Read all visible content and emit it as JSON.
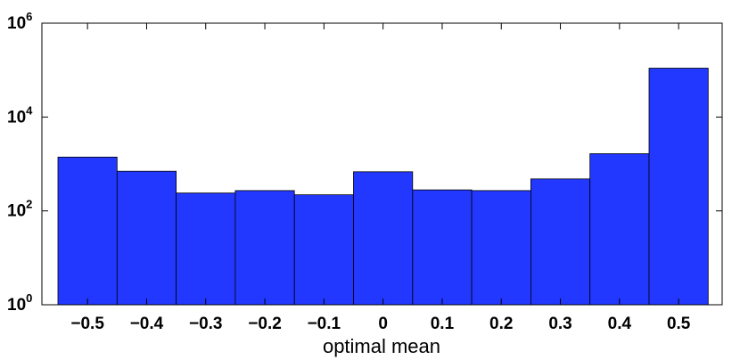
{
  "chart_data": {
    "type": "bar",
    "xlabel": "optimal mean",
    "ylabel": "",
    "title": "",
    "y_scale": "log",
    "ylim": [
      1,
      1000000
    ],
    "y_ticks": [
      {
        "value": 1,
        "base": "10",
        "exp": "0"
      },
      {
        "value": 100,
        "base": "10",
        "exp": "2"
      },
      {
        "value": 10000,
        "base": "10",
        "exp": "4"
      },
      {
        "value": 1000000,
        "base": "10",
        "exp": "6"
      }
    ],
    "categories": [
      "−0.5",
      "−0.4",
      "−0.3",
      "−0.2",
      "−0.1",
      "0",
      "0.1",
      "0.2",
      "0.3",
      "0.4",
      "0.5"
    ],
    "values": [
      1400,
      700,
      240,
      270,
      220,
      680,
      280,
      270,
      480,
      1650,
      110000
    ],
    "bar_color": "#2238ff",
    "grid": false,
    "legend": "none"
  }
}
